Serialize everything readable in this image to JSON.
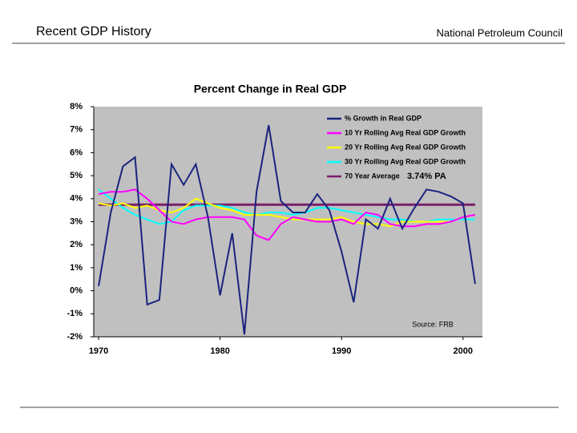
{
  "header": {
    "title": "Recent GDP History",
    "organization": "National Petroleum Council"
  },
  "chart_data": {
    "type": "line",
    "title": "Percent Change in Real GDP",
    "x": [
      1970,
      1971,
      1972,
      1973,
      1974,
      1975,
      1976,
      1977,
      1978,
      1979,
      1980,
      1981,
      1982,
      1983,
      1984,
      1985,
      1986,
      1987,
      1988,
      1989,
      1990,
      1991,
      1992,
      1993,
      1994,
      1995,
      1996,
      1997,
      1998,
      1999,
      2000,
      2001
    ],
    "series": [
      {
        "name": "% Growth in Real GDP",
        "color": "#1a237e",
        "values": [
          0.2,
          3.4,
          5.4,
          5.8,
          -0.6,
          -0.4,
          5.5,
          4.6,
          5.5,
          3.2,
          -0.2,
          2.5,
          -1.9,
          4.3,
          7.2,
          3.9,
          3.4,
          3.4,
          4.2,
          3.5,
          1.7,
          -0.5,
          3.1,
          2.7,
          4.0,
          2.7,
          3.6,
          4.4,
          4.3,
          4.1,
          3.8,
          0.3
        ]
      },
      {
        "name": "10 Yr Rolling Avg Real GDP Growth",
        "color": "#ff00ff",
        "values": [
          4.2,
          4.3,
          4.3,
          4.4,
          4.0,
          3.5,
          3.0,
          2.9,
          3.1,
          3.2,
          3.2,
          3.2,
          3.1,
          2.4,
          2.2,
          2.9,
          3.2,
          3.1,
          3.0,
          3.0,
          3.1,
          2.9,
          3.4,
          3.3,
          2.9,
          2.8,
          2.8,
          2.9,
          2.9,
          3.0,
          3.2,
          3.3
        ]
      },
      {
        "name": "20 Yr Rolling Avg Real GDP Growth",
        "color": "#ffff00",
        "values": [
          3.8,
          3.7,
          3.8,
          3.6,
          3.7,
          3.5,
          3.4,
          3.6,
          4.0,
          3.8,
          3.6,
          3.5,
          3.3,
          3.3,
          3.3,
          3.2,
          3.1,
          3.1,
          3.1,
          3.1,
          3.2,
          3.0,
          2.9,
          2.9,
          2.8,
          3.0,
          3.0,
          3.0,
          3.0,
          3.0,
          3.2,
          3.3
        ]
      },
      {
        "name": "30 Yr Rolling Avg Real GDP Growth",
        "color": "#00ffff",
        "values": [
          4.4,
          4.0,
          3.6,
          3.3,
          3.1,
          2.9,
          3.0,
          3.5,
          3.7,
          3.7,
          3.7,
          3.6,
          3.4,
          3.3,
          3.4,
          3.4,
          3.3,
          3.4,
          3.6,
          3.6,
          3.5,
          3.4,
          3.3,
          3.2,
          3.1,
          3.1,
          3.0,
          3.0,
          3.1,
          3.1,
          3.1,
          3.1
        ]
      },
      {
        "name": "70 Year Average",
        "color": "#7b1f6a",
        "values": [
          3.74,
          3.74,
          3.74,
          3.74,
          3.74,
          3.74,
          3.74,
          3.74,
          3.74,
          3.74,
          3.74,
          3.74,
          3.74,
          3.74,
          3.74,
          3.74,
          3.74,
          3.74,
          3.74,
          3.74,
          3.74,
          3.74,
          3.74,
          3.74,
          3.74,
          3.74,
          3.74,
          3.74,
          3.74,
          3.74,
          3.74,
          3.74
        ]
      }
    ],
    "average_label": "3.74% PA",
    "source": "Source: FRB",
    "xlim": [
      1969.6,
      2001.6
    ],
    "xticks": [
      1970,
      1980,
      1990,
      2000
    ],
    "ylim": [
      -2,
      8
    ],
    "yticks": [
      {
        "value": -2,
        "label": "-2%"
      },
      {
        "value": -1,
        "label": "-1%"
      },
      {
        "value": 0,
        "label": "0%"
      },
      {
        "value": 1,
        "label": "1%"
      },
      {
        "value": 2,
        "label": "2%"
      },
      {
        "value": 3,
        "label": "3%"
      },
      {
        "value": 4,
        "label": "4%"
      },
      {
        "value": 5,
        "label": "5%"
      },
      {
        "value": 6,
        "label": "6%"
      },
      {
        "value": 7,
        "label": "7%"
      },
      {
        "value": 8,
        "label": "8%"
      }
    ],
    "grid": false,
    "background": "#c0c0c0",
    "legend": "upper right"
  }
}
